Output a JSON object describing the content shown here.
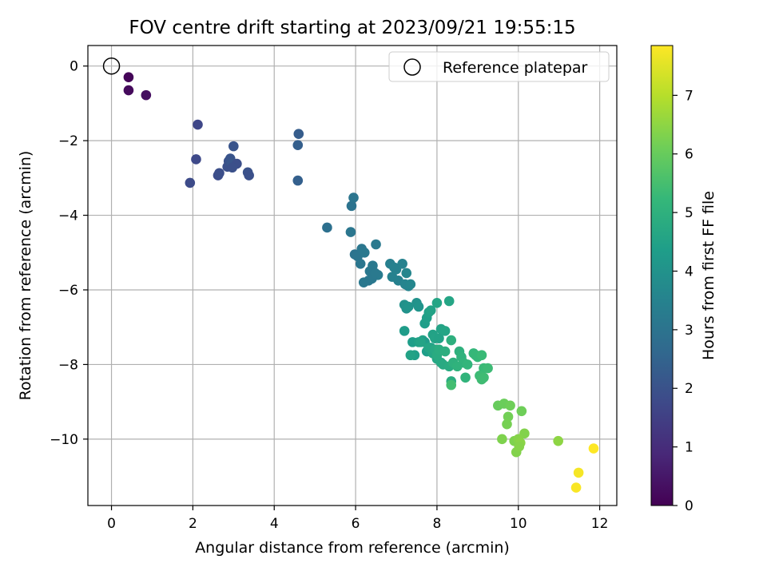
{
  "chart_data": {
    "type": "scatter",
    "title": "FOV centre drift starting at 2023/09/21 19:55:15",
    "xlabel": "Angular distance from reference (arcmin)",
    "ylabel": "Rotation from reference (arcmin)",
    "xlim": [
      -0.58,
      12.42
    ],
    "ylim": [
      -11.78,
      0.55
    ],
    "xticks": [
      0,
      2,
      4,
      6,
      8,
      10,
      12
    ],
    "xtick_labels": [
      "0",
      "2",
      "4",
      "6",
      "8",
      "10",
      "12"
    ],
    "yticks": [
      0,
      -2,
      -4,
      -6,
      -8,
      -10
    ],
    "ytick_labels": [
      "0",
      "−2",
      "−4",
      "−6",
      "−8",
      "−10"
    ],
    "grid": true,
    "legend": {
      "location": "upper right",
      "entries": [
        "Reference platepar"
      ]
    },
    "reference_point": {
      "x": 0,
      "y": 0
    },
    "colorbar": {
      "label": "Hours from first FF file",
      "colormap": "viridis",
      "range": [
        0,
        7.85
      ],
      "ticks": [
        0,
        1,
        2,
        3,
        4,
        5,
        6,
        7
      ],
      "tick_labels": [
        "0",
        "1",
        "2",
        "3",
        "4",
        "5",
        "6",
        "7"
      ],
      "colors": [
        "#440154",
        "#482878",
        "#3e4989",
        "#31688e",
        "#26828e",
        "#1f9e89",
        "#35b779",
        "#6ece58",
        "#b5de2b",
        "#fde725"
      ]
    },
    "series": [
      {
        "x": [
          0.42,
          0.42,
          0.85,
          2.12,
          2.08,
          1.93,
          2.62,
          2.65,
          2.85,
          2.88,
          2.92,
          2.95,
          3.0,
          3.08,
          2.97,
          3.35,
          3.38,
          4.6,
          4.58,
          4.58,
          5.3,
          5.9,
          5.95,
          5.88,
          5.98,
          6.05,
          6.12,
          6.15,
          6.22,
          6.35,
          6.42,
          6.5,
          6.55,
          6.32,
          6.4,
          6.48,
          6.2,
          6.85,
          6.9,
          7.0,
          7.05,
          7.15,
          7.22,
          7.25,
          7.3,
          7.35,
          6.95,
          7.2,
          7.25,
          7.3,
          7.5,
          7.55,
          7.2,
          7.4,
          7.45,
          7.55,
          7.65,
          7.7,
          7.75,
          7.8,
          7.85,
          7.9,
          7.95,
          8.0,
          7.7,
          7.75,
          7.85,
          8.05,
          8.1,
          8.2,
          7.8,
          7.9,
          8.0,
          8.1,
          7.95,
          8.15,
          8.3,
          8.35,
          7.35,
          7.6,
          8.0,
          8.05,
          8.2,
          8.35,
          8.4,
          8.55,
          8.6,
          8.65,
          8.7,
          8.5,
          8.3,
          8.75,
          8.9,
          8.95,
          9.0,
          9.1,
          9.15,
          9.25,
          9.05,
          9.1,
          9.15,
          8.35,
          9.5,
          9.65,
          9.8,
          9.75,
          9.72,
          10.08,
          9.6,
          10.15,
          9.9,
          9.95,
          10.0,
          10.05,
          10.02,
          10.98,
          11.48,
          11.42,
          11.85
        ],
        "y": [
          -0.3,
          -0.65,
          -0.78,
          -1.57,
          -2.5,
          -3.13,
          -2.93,
          -2.87,
          -2.7,
          -2.55,
          -2.48,
          -2.6,
          -2.15,
          -2.62,
          -2.72,
          -2.85,
          -2.93,
          -1.82,
          -2.12,
          -3.07,
          -4.33,
          -3.75,
          -3.53,
          -4.45,
          -5.05,
          -5.1,
          -5.3,
          -4.9,
          -5.0,
          -5.5,
          -5.35,
          -4.78,
          -5.6,
          -5.75,
          -5.7,
          -5.55,
          -5.8,
          -5.3,
          -5.65,
          -5.45,
          -5.75,
          -5.3,
          -5.85,
          -5.55,
          -5.9,
          -5.85,
          -5.4,
          -6.4,
          -6.5,
          -6.45,
          -6.35,
          -6.45,
          -7.1,
          -7.4,
          -7.75,
          -7.4,
          -7.35,
          -6.9,
          -6.75,
          -6.6,
          -6.55,
          -7.2,
          -7.3,
          -6.35,
          -7.4,
          -7.65,
          -7.55,
          -7.3,
          -7.05,
          -7.1,
          -7.55,
          -7.7,
          -7.85,
          -7.95,
          -7.6,
          -8.0,
          -8.05,
          -8.45,
          -7.75,
          -7.4,
          -7.75,
          -7.6,
          -7.65,
          -7.35,
          -7.95,
          -7.65,
          -7.8,
          -7.95,
          -8.35,
          -8.05,
          -6.3,
          -8.0,
          -7.7,
          -7.75,
          -7.8,
          -7.75,
          -8.1,
          -8.1,
          -8.3,
          -8.4,
          -8.35,
          -8.55,
          -9.1,
          -9.05,
          -9.1,
          -9.4,
          -9.6,
          -9.25,
          -10.0,
          -9.85,
          -10.05,
          -10.35,
          -10.0,
          -10.1,
          -10.2,
          -10.05,
          -10.9,
          -11.3,
          -10.25
        ],
        "c": [
          0.1,
          0.2,
          0.3,
          1.7,
          1.75,
          1.8,
          1.85,
          1.9,
          1.95,
          2.0,
          2.05,
          2.1,
          2.05,
          1.9,
          1.95,
          2.0,
          1.95,
          2.3,
          2.35,
          2.4,
          2.9,
          3.0,
          3.05,
          3.1,
          3.0,
          3.05,
          3.1,
          3.1,
          3.15,
          3.15,
          3.2,
          3.2,
          3.25,
          3.1,
          3.15,
          3.2,
          3.15,
          3.4,
          3.45,
          3.5,
          3.45,
          3.5,
          3.55,
          3.6,
          3.55,
          3.6,
          3.45,
          3.95,
          4.0,
          4.05,
          4.0,
          4.05,
          4.3,
          4.35,
          4.4,
          4.45,
          4.5,
          4.35,
          4.4,
          4.45,
          4.5,
          4.5,
          4.55,
          4.6,
          4.3,
          4.35,
          4.4,
          4.5,
          4.55,
          4.6,
          4.6,
          4.65,
          4.65,
          4.7,
          4.7,
          4.75,
          4.8,
          4.85,
          4.5,
          4.55,
          4.8,
          4.85,
          4.9,
          4.95,
          5.0,
          5.0,
          5.05,
          5.1,
          5.1,
          5.05,
          4.6,
          5.15,
          5.2,
          5.25,
          5.25,
          5.3,
          5.3,
          5.35,
          5.35,
          5.4,
          5.4,
          5.45,
          6.0,
          6.05,
          6.1,
          6.15,
          6.2,
          6.1,
          6.3,
          6.35,
          6.3,
          6.35,
          6.4,
          6.45,
          6.4,
          6.5,
          7.75,
          7.8,
          7.85
        ]
      }
    ]
  }
}
